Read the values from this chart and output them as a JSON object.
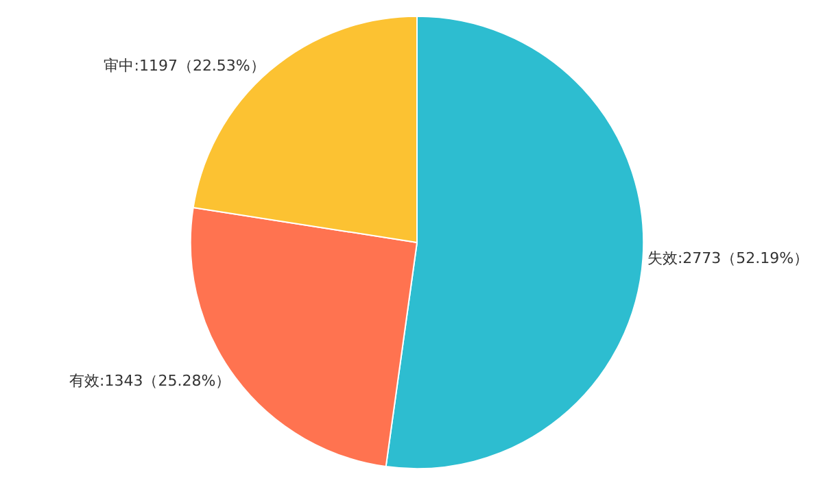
{
  "chart_data": {
    "type": "pie",
    "categories": [
      "失效",
      "有效",
      "审中"
    ],
    "values": [
      2773,
      1343,
      1197
    ],
    "colors": [
      "#2dbdd0",
      "#ff7350",
      "#fcc232"
    ],
    "value_labels": [
      "2773（52.19%）",
      "1343（25.28%）",
      "1197（22.53%）"
    ]
  }
}
